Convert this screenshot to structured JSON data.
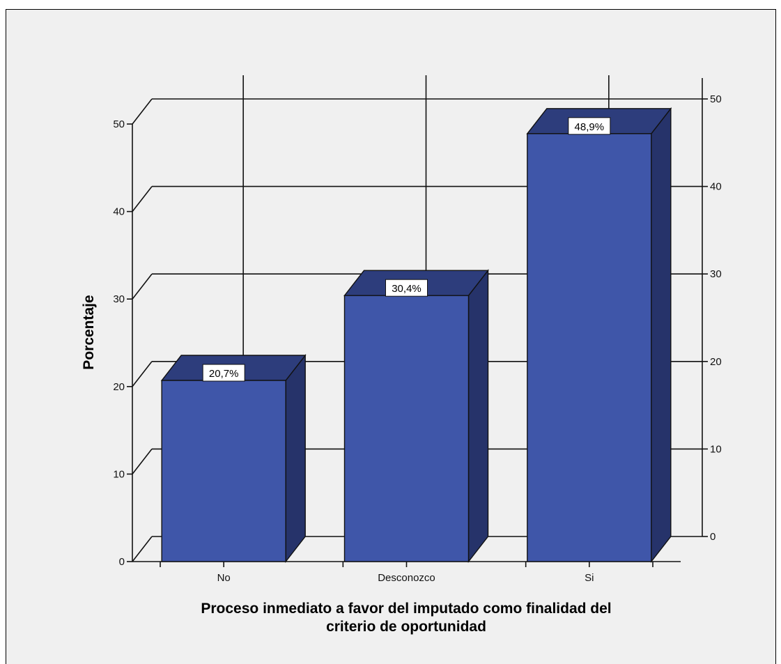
{
  "chart_data": {
    "type": "bar",
    "categories": [
      "No",
      "Desconozco",
      "Si"
    ],
    "values": [
      20.7,
      30.4,
      48.9
    ],
    "data_labels": [
      "20,7%",
      "30,4%",
      "48,9%"
    ],
    "title": "",
    "xlabel_lines": [
      "Proceso inmediato a favor del imputado como finalidad del",
      "criterio de oportunidad"
    ],
    "ylabel": "Porcentaje",
    "ylim": [
      0,
      50
    ],
    "yticks": [
      0,
      10,
      20,
      30,
      40,
      50
    ],
    "ytick_labels": [
      "0",
      "10",
      "20",
      "30",
      "40",
      "50"
    ],
    "grid": true,
    "style": "3d",
    "colors": {
      "bar_front": "#3f56a9",
      "bar_side": "#26336a",
      "bar_top": "#2d3d7c",
      "background": "#f0f0f0"
    }
  }
}
